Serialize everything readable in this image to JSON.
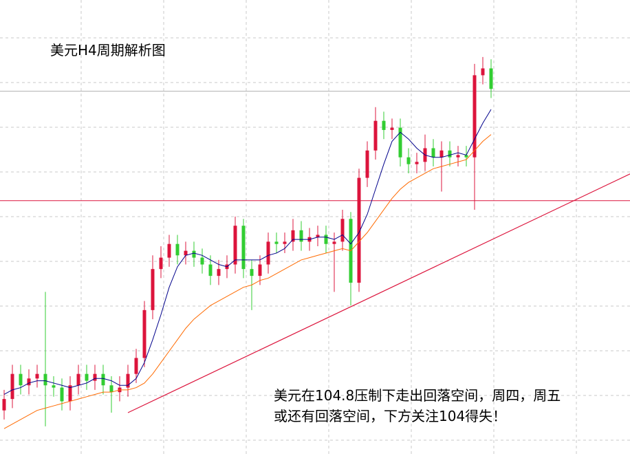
{
  "chart_data": {
    "type": "candlestick",
    "title": "美元H4周期解析图",
    "annotation": [
      "美元在104.8压制下走出回落空间，周四，周五",
      "或还有回落空间，下方关注104得失！"
    ],
    "ylim": [
      103.68,
      105.68
    ],
    "up_color": "#dc143c",
    "down_color": "#32cd32",
    "open": [
      103.88,
      103.93,
      104.04,
      103.99,
      104.02,
      104.04,
      103.99,
      103.98,
      103.92,
      103.99,
      104.04,
      104.01,
      104.04,
      103.99,
      103.96,
      103.98,
      104.04,
      104.11,
      104.32,
      104.5,
      104.55,
      104.61,
      104.56,
      104.58,
      104.55,
      104.52,
      104.47,
      104.5,
      104.52,
      104.69,
      104.5,
      104.47,
      104.52,
      104.62,
      104.61,
      104.62,
      104.67,
      104.62,
      104.64,
      104.65,
      104.61,
      104.62,
      104.72,
      104.44,
      104.9,
      105.02,
      105.15,
      105.11,
      105.12,
      104.99,
      104.96,
      104.97,
      105.03,
      104.99,
      105.02,
      104.99,
      105.0,
      104.99,
      105.35,
      105.38
    ],
    "high": [
      103.97,
      104.08,
      104.08,
      104.06,
      104.08,
      104.4,
      104.03,
      104.02,
      104.03,
      104.08,
      104.08,
      104.08,
      104.08,
      104.03,
      104.03,
      104.08,
      104.15,
      104.36,
      104.56,
      104.6,
      104.65,
      104.65,
      104.62,
      104.62,
      104.59,
      104.56,
      104.54,
      104.56,
      104.73,
      104.72,
      104.54,
      104.56,
      104.66,
      104.66,
      104.66,
      104.72,
      104.71,
      104.68,
      104.69,
      104.69,
      104.66,
      104.76,
      104.75,
      104.94,
      105.06,
      105.21,
      105.19,
      105.16,
      105.16,
      105.03,
      105.01,
      105.09,
      105.07,
      105.06,
      105.06,
      105.04,
      105.04,
      105.4,
      105.43,
      105.42
    ],
    "low": [
      103.84,
      103.89,
      103.95,
      103.95,
      103.98,
      103.81,
      103.94,
      103.88,
      103.88,
      103.95,
      103.97,
      103.97,
      103.95,
      103.87,
      103.92,
      103.94,
      104.0,
      104.07,
      104.28,
      104.46,
      104.51,
      104.52,
      104.52,
      104.51,
      104.48,
      104.43,
      104.43,
      104.46,
      104.48,
      104.46,
      104.32,
      104.43,
      104.48,
      104.57,
      104.57,
      104.58,
      104.58,
      104.58,
      104.6,
      104.57,
      104.4,
      104.58,
      104.34,
      104.4,
      104.86,
      104.98,
      105.07,
      105.07,
      104.95,
      104.92,
      104.92,
      104.93,
      104.95,
      104.84,
      104.95,
      104.95,
      104.95,
      104.76,
      105.31,
      105.25
    ],
    "close": [
      103.93,
      104.04,
      103.99,
      104.02,
      104.04,
      103.99,
      103.98,
      103.92,
      103.99,
      104.04,
      104.01,
      104.04,
      103.99,
      103.96,
      103.98,
      104.04,
      104.11,
      104.32,
      104.5,
      104.55,
      104.61,
      104.56,
      104.58,
      104.55,
      104.52,
      104.47,
      104.5,
      104.52,
      104.69,
      104.5,
      104.47,
      104.52,
      104.62,
      104.61,
      104.62,
      104.67,
      104.62,
      104.64,
      104.65,
      104.61,
      104.62,
      104.72,
      104.44,
      104.9,
      105.02,
      105.15,
      105.11,
      105.12,
      104.99,
      104.96,
      104.97,
      105.03,
      104.99,
      105.02,
      104.99,
      105.0,
      104.99,
      105.35,
      105.38,
      105.29
    ],
    "series": [
      {
        "color": "#00008b",
        "values": [
          103.95,
          103.97,
          103.98,
          104.0,
          104.01,
          104.01,
          104.0,
          103.99,
          103.98,
          103.99,
          104.0,
          104.02,
          104.02,
          104.01,
          103.99,
          103.99,
          104.02,
          104.09,
          104.19,
          104.3,
          104.42,
          104.51,
          104.56,
          104.57,
          104.56,
          104.54,
          104.52,
          104.51,
          104.54,
          104.54,
          104.54,
          104.54,
          104.56,
          104.57,
          104.59,
          104.63,
          104.63,
          104.63,
          104.64,
          104.64,
          104.63,
          104.65,
          104.61,
          104.66,
          104.74,
          104.85,
          104.96,
          105.06,
          105.1,
          105.07,
          105.03,
          105.0,
          104.99,
          104.99,
          105.0,
          105.01,
          105.0,
          105.07,
          105.14,
          105.2
        ]
      },
      {
        "color": "#ff6a00",
        "values": [
          103.8,
          103.82,
          103.84,
          103.86,
          103.88,
          103.89,
          103.9,
          103.91,
          103.92,
          103.93,
          103.94,
          103.95,
          103.96,
          103.96,
          103.97,
          103.97,
          103.98,
          104.0,
          104.04,
          104.09,
          104.14,
          104.19,
          104.24,
          104.28,
          104.31,
          104.34,
          104.36,
          104.38,
          104.4,
          104.42,
          104.43,
          104.45,
          104.46,
          104.48,
          104.5,
          104.52,
          104.54,
          104.55,
          104.56,
          104.57,
          104.58,
          104.59,
          104.58,
          104.62,
          104.66,
          104.71,
          104.76,
          104.81,
          104.85,
          104.88,
          104.9,
          104.92,
          104.94,
          104.95,
          104.96,
          104.97,
          104.98,
          105.02,
          105.06,
          105.09
        ]
      }
    ],
    "resistance_line": {
      "value": 104.8,
      "color": "#dc143c"
    },
    "price_line": {
      "value": 105.28,
      "color": "#b0b0b0"
    },
    "trend_line": {
      "index": [
        15,
        76
      ],
      "values": [
        103.87,
        104.92
      ],
      "color": "#dc143c"
    }
  }
}
